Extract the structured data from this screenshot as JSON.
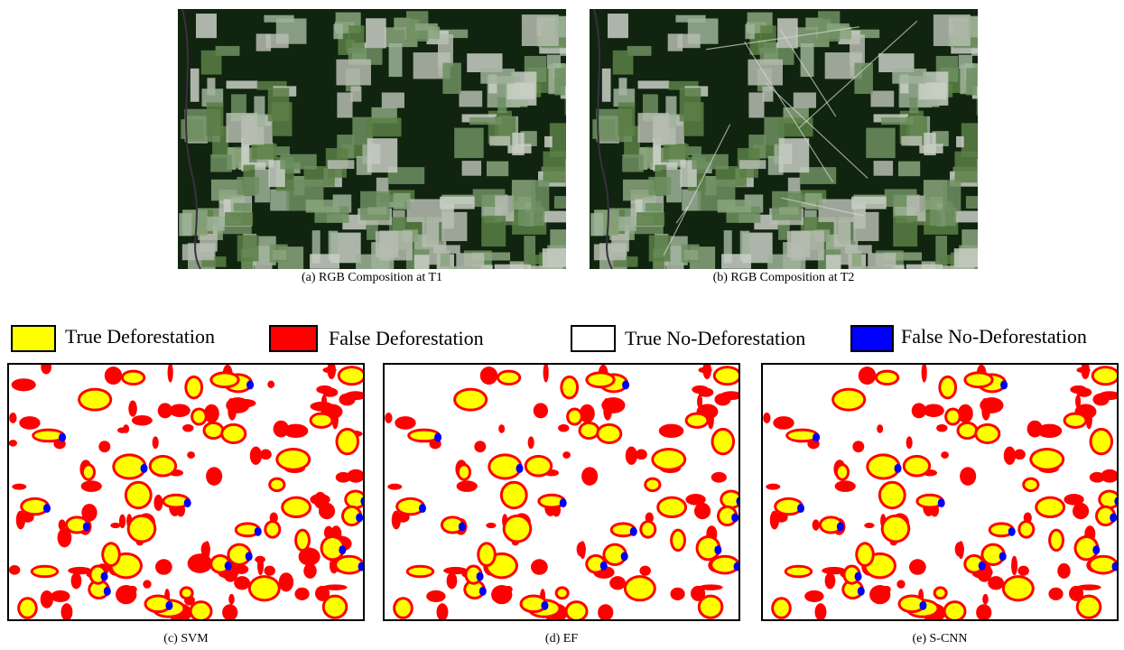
{
  "figure": {
    "top_panels": [
      {
        "caption": "(a) RGB Composition at T1"
      },
      {
        "caption": "(b) RGB Composition at T2"
      }
    ],
    "legend": [
      {
        "label": "True Deforestation"
      },
      {
        "label": "False Deforestation"
      },
      {
        "label": "True No-Deforestation"
      },
      {
        "label": "False No-Deforestation"
      }
    ],
    "bottom_panels": [
      {
        "caption": "(c) SVM"
      },
      {
        "caption": "(d) EF"
      },
      {
        "caption": "(e) S-CNN"
      }
    ]
  }
}
